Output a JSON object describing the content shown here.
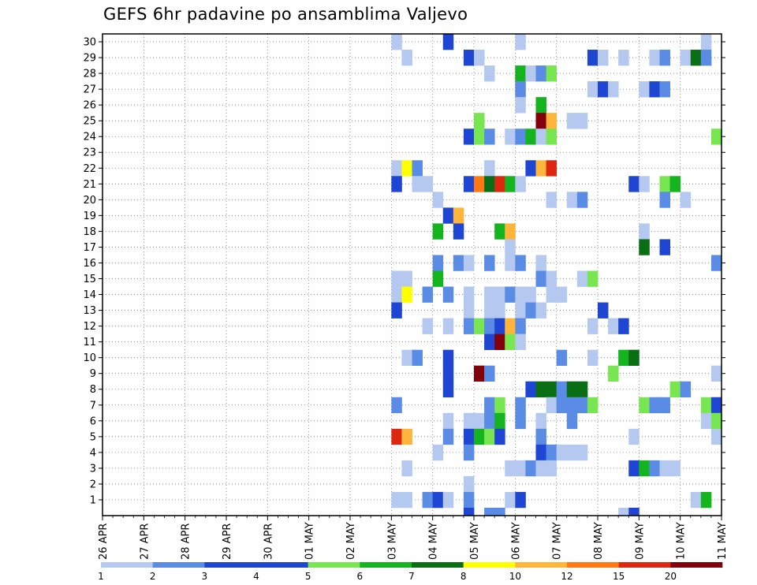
{
  "chart_data": {
    "type": "heatmap",
    "title": "GEFS 6hr padavine po ansamblima Valjevo",
    "members": [
      "1",
      "2",
      "3",
      "4",
      "5",
      "6",
      "7",
      "8",
      "9",
      "10",
      "11",
      "12",
      "13",
      "14",
      "15",
      "16",
      "17",
      "18",
      "19",
      "20",
      "21",
      "22",
      "23",
      "24",
      "25",
      "26",
      "27",
      "28",
      "29",
      "30"
    ],
    "date_ticks": [
      "26 APR",
      "27 APR",
      "28 APR",
      "29 APR",
      "30 APR",
      "01 MAY",
      "02 MAY",
      "03 MAY",
      "04 MAY",
      "05 MAY",
      "06 MAY",
      "07 MAY",
      "08 MAY",
      "09 MAY",
      "10 MAY",
      "11 MAY"
    ],
    "time_steps_per_day": 4,
    "time_range_days": [
      0,
      15
    ],
    "y_range": [
      0,
      30
    ],
    "grid": "dotted",
    "legend_position": "bottom",
    "color_scale": {
      "labels": [
        "1",
        "2",
        "3",
        "4",
        "5",
        "6",
        "7",
        "8",
        "10",
        "12",
        "15",
        "20"
      ],
      "colors": [
        "#b4c8f0",
        "#5a8ce6",
        "#1e46d2",
        "#1e46d2",
        "#78e650",
        "#14b41e",
        "#0a6e14",
        "#ffff00",
        "#ffb43c",
        "#ff7814",
        "#dc2810",
        "#82000a"
      ]
    },
    "cells": [
      {
        "m": 30,
        "t": 28,
        "c": 0
      },
      {
        "m": 30,
        "t": 33,
        "c": 3
      },
      {
        "m": 30,
        "t": 40,
        "c": 0
      },
      {
        "m": 30,
        "t": 58,
        "c": 0
      },
      {
        "m": 29,
        "t": 29,
        "c": 0
      },
      {
        "m": 29,
        "t": 35,
        "c": 2
      },
      {
        "m": 29,
        "t": 36,
        "c": 0
      },
      {
        "m": 29,
        "t": 47,
        "c": 3
      },
      {
        "m": 29,
        "t": 48,
        "c": 0
      },
      {
        "m": 29,
        "t": 50,
        "c": 0
      },
      {
        "m": 29,
        "t": 53,
        "c": 0
      },
      {
        "m": 29,
        "t": 54,
        "c": 1
      },
      {
        "m": 29,
        "t": 56,
        "c": 0
      },
      {
        "m": 29,
        "t": 57,
        "c": 6
      },
      {
        "m": 29,
        "t": 58,
        "c": 1
      },
      {
        "m": 28,
        "t": 37,
        "c": 0
      },
      {
        "m": 28,
        "t": 40,
        "c": 5
      },
      {
        "m": 28,
        "t": 41,
        "c": 0
      },
      {
        "m": 28,
        "t": 42,
        "c": 1
      },
      {
        "m": 28,
        "t": 43,
        "c": 4
      },
      {
        "m": 27,
        "t": 40,
        "c": 1
      },
      {
        "m": 27,
        "t": 47,
        "c": 0
      },
      {
        "m": 27,
        "t": 48,
        "c": 3
      },
      {
        "m": 27,
        "t": 49,
        "c": 0
      },
      {
        "m": 27,
        "t": 52,
        "c": 0
      },
      {
        "m": 27,
        "t": 53,
        "c": 3
      },
      {
        "m": 27,
        "t": 54,
        "c": 1
      },
      {
        "m": 26,
        "t": 40,
        "c": 0
      },
      {
        "m": 26,
        "t": 42,
        "c": 5
      },
      {
        "m": 25,
        "t": 36,
        "c": 4
      },
      {
        "m": 25,
        "t": 42,
        "c": 11
      },
      {
        "m": 25,
        "t": 43,
        "c": 8
      },
      {
        "m": 25,
        "t": 45,
        "c": 0
      },
      {
        "m": 25,
        "t": 46,
        "c": 0
      },
      {
        "m": 24,
        "t": 35,
        "c": 3
      },
      {
        "m": 24,
        "t": 36,
        "c": 4
      },
      {
        "m": 24,
        "t": 37,
        "c": 1
      },
      {
        "m": 24,
        "t": 39,
        "c": 0
      },
      {
        "m": 24,
        "t": 40,
        "c": 1
      },
      {
        "m": 24,
        "t": 41,
        "c": 5
      },
      {
        "m": 24,
        "t": 42,
        "c": 0
      },
      {
        "m": 24,
        "t": 43,
        "c": 4
      },
      {
        "m": 24,
        "t": 59,
        "c": 4
      },
      {
        "m": 22,
        "t": 28,
        "c": 0
      },
      {
        "m": 22,
        "t": 29,
        "c": 7
      },
      {
        "m": 22,
        "t": 30,
        "c": 1
      },
      {
        "m": 22,
        "t": 37,
        "c": 0
      },
      {
        "m": 22,
        "t": 41,
        "c": 3
      },
      {
        "m": 22,
        "t": 42,
        "c": 8
      },
      {
        "m": 22,
        "t": 43,
        "c": 10
      },
      {
        "m": 21,
        "t": 28,
        "c": 3
      },
      {
        "m": 21,
        "t": 30,
        "c": 0
      },
      {
        "m": 21,
        "t": 31,
        "c": 0
      },
      {
        "m": 21,
        "t": 35,
        "c": 3
      },
      {
        "m": 21,
        "t": 36,
        "c": 9
      },
      {
        "m": 21,
        "t": 37,
        "c": 6
      },
      {
        "m": 21,
        "t": 38,
        "c": 10
      },
      {
        "m": 21,
        "t": 39,
        "c": 5
      },
      {
        "m": 21,
        "t": 40,
        "c": 0
      },
      {
        "m": 21,
        "t": 51,
        "c": 3
      },
      {
        "m": 21,
        "t": 52,
        "c": 0
      },
      {
        "m": 21,
        "t": 54,
        "c": 4
      },
      {
        "m": 21,
        "t": 55,
        "c": 5
      },
      {
        "m": 20,
        "t": 32,
        "c": 0
      },
      {
        "m": 20,
        "t": 43,
        "c": 0
      },
      {
        "m": 20,
        "t": 45,
        "c": 0
      },
      {
        "m": 20,
        "t": 46,
        "c": 1
      },
      {
        "m": 20,
        "t": 54,
        "c": 1
      },
      {
        "m": 20,
        "t": 56,
        "c": 0
      },
      {
        "m": 19,
        "t": 33,
        "c": 3
      },
      {
        "m": 19,
        "t": 34,
        "c": 8
      },
      {
        "m": 18,
        "t": 32,
        "c": 5
      },
      {
        "m": 18,
        "t": 34,
        "c": 3
      },
      {
        "m": 18,
        "t": 38,
        "c": 5
      },
      {
        "m": 18,
        "t": 39,
        "c": 8
      },
      {
        "m": 18,
        "t": 52,
        "c": 0
      },
      {
        "m": 17,
        "t": 39,
        "c": 0
      },
      {
        "m": 17,
        "t": 52,
        "c": 6
      },
      {
        "m": 17,
        "t": 54,
        "c": 3
      },
      {
        "m": 16,
        "t": 32,
        "c": 1
      },
      {
        "m": 16,
        "t": 34,
        "c": 1
      },
      {
        "m": 16,
        "t": 35,
        "c": 0
      },
      {
        "m": 16,
        "t": 37,
        "c": 1
      },
      {
        "m": 16,
        "t": 39,
        "c": 0
      },
      {
        "m": 16,
        "t": 40,
        "c": 1
      },
      {
        "m": 16,
        "t": 42,
        "c": 0
      },
      {
        "m": 16,
        "t": 59,
        "c": 1
      },
      {
        "m": 15,
        "t": 28,
        "c": 0
      },
      {
        "m": 15,
        "t": 29,
        "c": 0
      },
      {
        "m": 15,
        "t": 32,
        "c": 5
      },
      {
        "m": 15,
        "t": 42,
        "c": 1
      },
      {
        "m": 15,
        "t": 43,
        "c": 0
      },
      {
        "m": 15,
        "t": 46,
        "c": 0
      },
      {
        "m": 15,
        "t": 47,
        "c": 4
      },
      {
        "m": 14,
        "t": 28,
        "c": 0
      },
      {
        "m": 14,
        "t": 29,
        "c": 7
      },
      {
        "m": 14,
        "t": 31,
        "c": 1
      },
      {
        "m": 14,
        "t": 33,
        "c": 1
      },
      {
        "m": 14,
        "t": 35,
        "c": 0
      },
      {
        "m": 14,
        "t": 37,
        "c": 0
      },
      {
        "m": 14,
        "t": 38,
        "c": 0
      },
      {
        "m": 14,
        "t": 39,
        "c": 1
      },
      {
        "m": 14,
        "t": 40,
        "c": 0
      },
      {
        "m": 14,
        "t": 41,
        "c": 0
      },
      {
        "m": 14,
        "t": 43,
        "c": 0
      },
      {
        "m": 14,
        "t": 44,
        "c": 0
      },
      {
        "m": 13,
        "t": 28,
        "c": 3
      },
      {
        "m": 13,
        "t": 35,
        "c": 0
      },
      {
        "m": 13,
        "t": 37,
        "c": 0
      },
      {
        "m": 13,
        "t": 38,
        "c": 0
      },
      {
        "m": 13,
        "t": 40,
        "c": 0
      },
      {
        "m": 13,
        "t": 41,
        "c": 1
      },
      {
        "m": 13,
        "t": 42,
        "c": 0
      },
      {
        "m": 13,
        "t": 48,
        "c": 3
      },
      {
        "m": 12,
        "t": 31,
        "c": 0
      },
      {
        "m": 12,
        "t": 33,
        "c": 0
      },
      {
        "m": 12,
        "t": 35,
        "c": 1
      },
      {
        "m": 12,
        "t": 36,
        "c": 4
      },
      {
        "m": 12,
        "t": 37,
        "c": 1
      },
      {
        "m": 12,
        "t": 38,
        "c": 3
      },
      {
        "m": 12,
        "t": 39,
        "c": 8
      },
      {
        "m": 12,
        "t": 40,
        "c": 1
      },
      {
        "m": 12,
        "t": 47,
        "c": 0
      },
      {
        "m": 12,
        "t": 49,
        "c": 0
      },
      {
        "m": 12,
        "t": 50,
        "c": 3
      },
      {
        "m": 11,
        "t": 37,
        "c": 3
      },
      {
        "m": 11,
        "t": 38,
        "c": 11
      },
      {
        "m": 11,
        "t": 39,
        "c": 4
      },
      {
        "m": 11,
        "t": 40,
        "c": 0
      },
      {
        "m": 10,
        "t": 29,
        "c": 0
      },
      {
        "m": 10,
        "t": 30,
        "c": 1
      },
      {
        "m": 10,
        "t": 33,
        "c": 3
      },
      {
        "m": 10,
        "t": 44,
        "c": 1
      },
      {
        "m": 10,
        "t": 47,
        "c": 0
      },
      {
        "m": 10,
        "t": 50,
        "c": 5
      },
      {
        "m": 10,
        "t": 51,
        "c": 6
      },
      {
        "m": 9,
        "t": 33,
        "c": 3
      },
      {
        "m": 9,
        "t": 36,
        "c": 11
      },
      {
        "m": 9,
        "t": 37,
        "c": 1
      },
      {
        "m": 9,
        "t": 49,
        "c": 4
      },
      {
        "m": 9,
        "t": 59,
        "c": 0
      },
      {
        "m": 8,
        "t": 33,
        "c": 3
      },
      {
        "m": 8,
        "t": 41,
        "c": 3
      },
      {
        "m": 8,
        "t": 42,
        "c": 6
      },
      {
        "m": 8,
        "t": 43,
        "c": 6
      },
      {
        "m": 8,
        "t": 44,
        "c": 1
      },
      {
        "m": 8,
        "t": 45,
        "c": 6
      },
      {
        "m": 8,
        "t": 46,
        "c": 6
      },
      {
        "m": 8,
        "t": 55,
        "c": 4
      },
      {
        "m": 8,
        "t": 56,
        "c": 1
      },
      {
        "m": 7,
        "t": 28,
        "c": 1
      },
      {
        "m": 7,
        "t": 37,
        "c": 1
      },
      {
        "m": 7,
        "t": 38,
        "c": 4
      },
      {
        "m": 7,
        "t": 40,
        "c": 1
      },
      {
        "m": 7,
        "t": 43,
        "c": 0
      },
      {
        "m": 7,
        "t": 44,
        "c": 1
      },
      {
        "m": 7,
        "t": 45,
        "c": 1
      },
      {
        "m": 7,
        "t": 46,
        "c": 1
      },
      {
        "m": 7,
        "t": 47,
        "c": 4
      },
      {
        "m": 7,
        "t": 52,
        "c": 4
      },
      {
        "m": 7,
        "t": 53,
        "c": 1
      },
      {
        "m": 7,
        "t": 54,
        "c": 1
      },
      {
        "m": 7,
        "t": 58,
        "c": 4
      },
      {
        "m": 7,
        "t": 59,
        "c": 3
      },
      {
        "m": 6,
        "t": 33,
        "c": 0
      },
      {
        "m": 6,
        "t": 35,
        "c": 0
      },
      {
        "m": 6,
        "t": 36,
        "c": 0
      },
      {
        "m": 6,
        "t": 37,
        "c": 1
      },
      {
        "m": 6,
        "t": 38,
        "c": 5
      },
      {
        "m": 6,
        "t": 40,
        "c": 1
      },
      {
        "m": 6,
        "t": 42,
        "c": 0
      },
      {
        "m": 6,
        "t": 45,
        "c": 1
      },
      {
        "m": 6,
        "t": 58,
        "c": 0
      },
      {
        "m": 6,
        "t": 59,
        "c": 4
      },
      {
        "m": 5,
        "t": 28,
        "c": 10
      },
      {
        "m": 5,
        "t": 29,
        "c": 8
      },
      {
        "m": 5,
        "t": 33,
        "c": 1
      },
      {
        "m": 5,
        "t": 35,
        "c": 3
      },
      {
        "m": 5,
        "t": 36,
        "c": 5
      },
      {
        "m": 5,
        "t": 37,
        "c": 4
      },
      {
        "m": 5,
        "t": 38,
        "c": 3
      },
      {
        "m": 5,
        "t": 42,
        "c": 1
      },
      {
        "m": 5,
        "t": 51,
        "c": 0
      },
      {
        "m": 5,
        "t": 59,
        "c": 0
      },
      {
        "m": 4,
        "t": 32,
        "c": 0
      },
      {
        "m": 4,
        "t": 35,
        "c": 1
      },
      {
        "m": 4,
        "t": 42,
        "c": 3
      },
      {
        "m": 4,
        "t": 43,
        "c": 1
      },
      {
        "m": 4,
        "t": 44,
        "c": 0
      },
      {
        "m": 4,
        "t": 45,
        "c": 0
      },
      {
        "m": 4,
        "t": 46,
        "c": 0
      },
      {
        "m": 3,
        "t": 29,
        "c": 0
      },
      {
        "m": 3,
        "t": 39,
        "c": 0
      },
      {
        "m": 3,
        "t": 40,
        "c": 0
      },
      {
        "m": 3,
        "t": 41,
        "c": 1
      },
      {
        "m": 3,
        "t": 42,
        "c": 0
      },
      {
        "m": 3,
        "t": 43,
        "c": 0
      },
      {
        "m": 3,
        "t": 51,
        "c": 3
      },
      {
        "m": 3,
        "t": 52,
        "c": 5
      },
      {
        "m": 3,
        "t": 53,
        "c": 1
      },
      {
        "m": 3,
        "t": 54,
        "c": 0
      },
      {
        "m": 3,
        "t": 55,
        "c": 0
      },
      {
        "m": 2,
        "t": 35,
        "c": 0
      },
      {
        "m": 1,
        "t": 28,
        "c": 0
      },
      {
        "m": 1,
        "t": 29,
        "c": 0
      },
      {
        "m": 1,
        "t": 31,
        "c": 1
      },
      {
        "m": 1,
        "t": 32,
        "c": 3
      },
      {
        "m": 1,
        "t": 33,
        "c": 0
      },
      {
        "m": 1,
        "t": 35,
        "c": 1
      },
      {
        "m": 1,
        "t": 39,
        "c": 0
      },
      {
        "m": 1,
        "t": 40,
        "c": 3
      },
      {
        "m": 1,
        "t": 57,
        "c": 0
      },
      {
        "m": 1,
        "t": 58,
        "c": 5
      },
      {
        "m": 0,
        "t": 35,
        "c": 3
      },
      {
        "m": 0,
        "t": 37,
        "c": 1
      },
      {
        "m": 0,
        "t": 38,
        "c": 1
      },
      {
        "m": 0,
        "t": 50,
        "c": 0
      },
      {
        "m": 0,
        "t": 51,
        "c": 3
      }
    ]
  }
}
